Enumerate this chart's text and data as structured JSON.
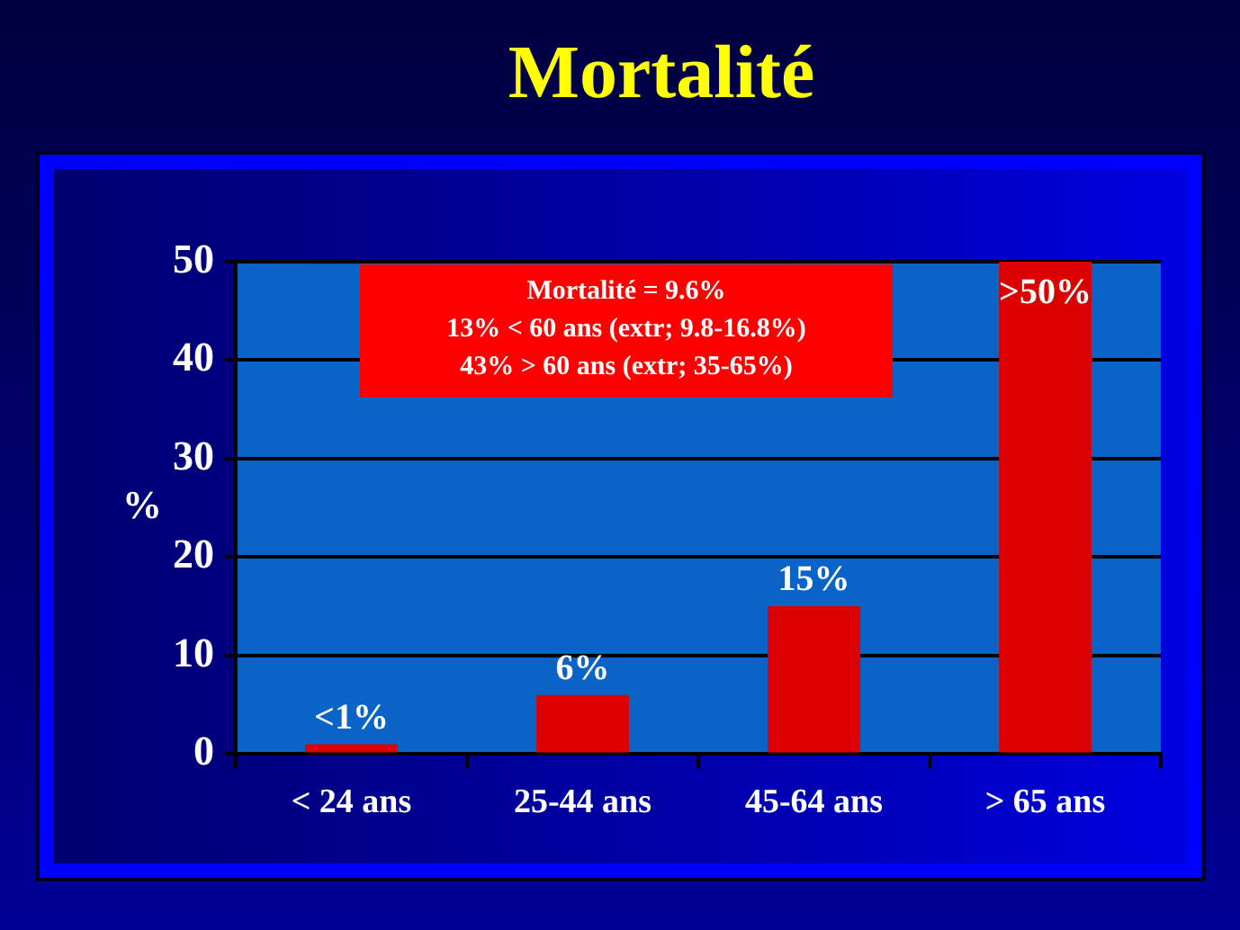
{
  "chart_data": {
    "type": "bar",
    "title": "Mortalité",
    "ylabel": "%",
    "categories": [
      "< 24 ans",
      "25-44 ans",
      "45-64 ans",
      "> 65 ans"
    ],
    "values": [
      1,
      6,
      15,
      50
    ],
    "value_labels": [
      "<1%",
      "6%",
      "15%",
      ">50%"
    ],
    "color": "#dd0000",
    "ylim": [
      0,
      50
    ],
    "yticks": [
      0,
      10,
      20,
      30,
      40,
      50
    ],
    "grid": "y",
    "annotations": [
      "Mortalité = 9.6%",
      "13% < 60 ans (extr; 9.8-16.8%)",
      "43% > 60 ans (extr; 35-65%)"
    ]
  }
}
